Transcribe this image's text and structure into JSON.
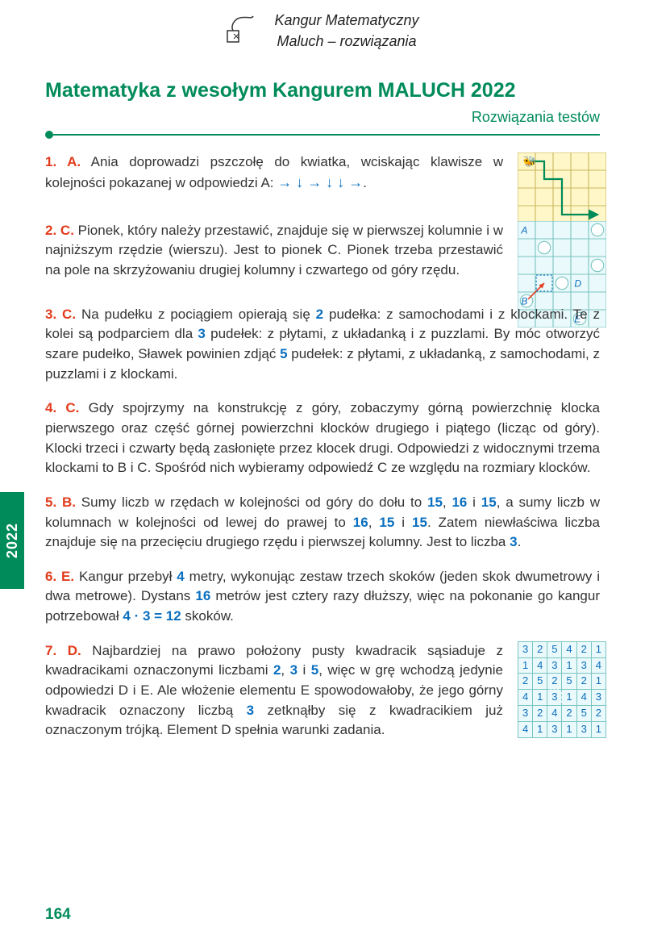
{
  "header": {
    "line1": "Kangur Matematyczny",
    "line2": "Maluch – rozwiązania"
  },
  "title": "Matematyka z wesołym Kangurem MALUCH 2022",
  "subtitle": "Rozwiązania testów",
  "tab_year": "2022",
  "page_number": "164",
  "colors": {
    "accent": "#008b5a",
    "answer_num": "#e23c1c",
    "highlight": "#0a6fbf",
    "grid_bg_yellow": "#fff7c7",
    "grid_bg_blue": "#eaf9fb",
    "grid_line": "#79c5c0"
  },
  "solutions": {
    "s1": {
      "num": "1. A.",
      "text": "Ania doprowadzi pszczołę do kwiatka, wciskając klawisze w kolejności pokazanej w odpowiedzi A: ",
      "arrows": "→ ↓ → ↓ ↓ →",
      "tail": "."
    },
    "s2": {
      "num": "2. C.",
      "text": "Pionek, który należy przestawić, znajduje się w pierwszej kolumnie i w najniższym rzędzie (wierszu). Jest to pionek C. Pionek trzeba przestawić na pole na skrzyżowaniu drugiej kolumny i czwartego od góry rzędu."
    },
    "s3": {
      "num": "3. C.",
      "t1": "Na pudełku z pociągiem opierają się ",
      "n1": "2",
      "t2": " pudełka: z samochodami i z klockami. Te z kolei są podparciem dla ",
      "n2": "3",
      "t3": " pudełek: z płytami, z układanką i z puzzlami. By móc otworzyć szare pudełko, Sławek powinien zdjąć ",
      "n3": "5",
      "t4": " pudełek: z płytami, z układanką, z samochodami, z puzzlami i z klockami."
    },
    "s4": {
      "num": "4. C.",
      "text": "Gdy spojrzymy na konstrukcję z góry, zobaczymy górną powierzchnię klocka pierwszego oraz część górnej powierzchni klocków drugiego i piątego (licząc od góry). Klocki trzeci i czwarty będą zasłonięte przez klocek drugi. Odpowiedzi z widocznymi trzema klockami to B i C. Spośród nich wybieramy odpowiedź C ze względu na rozmiary klocków."
    },
    "s5": {
      "num": "5. B.",
      "t1": "Sumy liczb w rzędach w kolejności od góry do dołu to ",
      "n1": "15",
      "c1": ", ",
      "n2": "16",
      "c2": " i ",
      "n3": "15",
      "t2": ", a sumy liczb w kolumnach w kolejności od lewej do prawej to ",
      "n4": "16",
      "c3": ", ",
      "n5": "15",
      "c4": " i ",
      "n6": "15",
      "t3": ". Zatem niewłaściwa liczba znajduje się na przecięciu drugiego rzędu i pierwszej kolumny. Jest to liczba ",
      "n7": "3",
      "t4": "."
    },
    "s6": {
      "num": "6. E.",
      "t1": "Kangur przebył ",
      "n1": "4",
      "t2": " metry, wykonując zestaw trzech skoków (jeden skok dwumetrowy i dwa metrowe). Dystans ",
      "n2": "16",
      "t3": " metrów jest cztery razy dłuższy, więc na pokonanie go kangur potrzebował ",
      "eq": "4 · 3 = 12",
      "t4": " skoków."
    },
    "s7": {
      "num": "7. D.",
      "t1": "Najbardziej na prawo położony pusty kwadracik sąsiaduje z kwadracikami oznaczonymi liczbami ",
      "n1": "2",
      "c1": ", ",
      "n2": "3",
      "c2": " i ",
      "n3": "5",
      "t2": ", więc w grę wchodzą jedynie odpowiedzi D i E. Ale włożenie elementu E spowodowałoby, że jego górny kwadracik oznaczony liczbą ",
      "n4": "3",
      "t3": " zetknąłby się z kwadracikiem już oznaczonym trójką. Element D spełnia warunki zadania.",
      "table": {
        "rows": [
          [
            "3",
            "2",
            "5",
            "4",
            "2",
            "1"
          ],
          [
            "1",
            "4",
            "3",
            "1",
            "3",
            "4"
          ],
          [
            "2",
            "5",
            "2",
            "5",
            "2",
            "1"
          ],
          [
            "4",
            "1",
            "3",
            "1",
            "4",
            "3"
          ],
          [
            "3",
            "2",
            "4",
            "2",
            "5",
            "2"
          ],
          [
            "4",
            "1",
            "3",
            "1",
            "3",
            "1"
          ]
        ],
        "dashed_cells": [
          [
            2,
            2
          ],
          [
            3,
            2
          ],
          [
            3,
            3
          ]
        ]
      }
    }
  }
}
